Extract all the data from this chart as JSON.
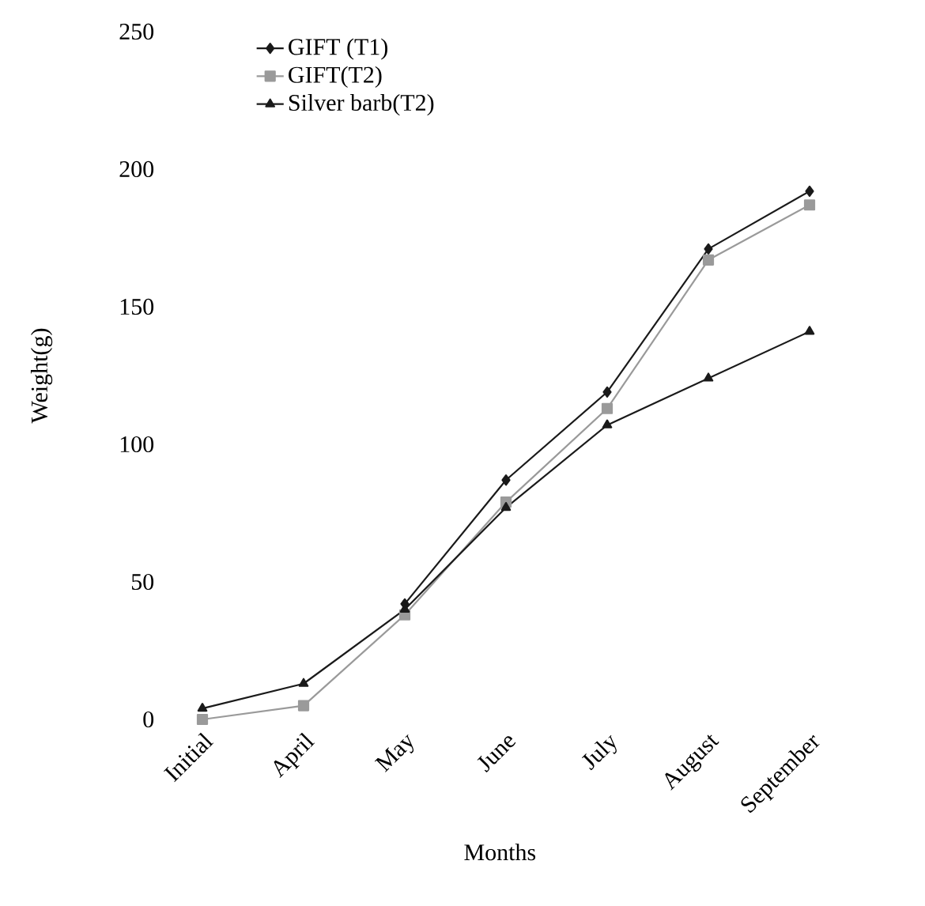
{
  "chart_data": {
    "type": "line",
    "xlabel": "Months",
    "ylabel": "Weight(g)",
    "categories": [
      "Initial",
      "April",
      "May",
      "June",
      "July",
      "August",
      "September"
    ],
    "ylim": [
      0,
      250
    ],
    "yticks": [
      0,
      50,
      100,
      150,
      200,
      250
    ],
    "legend": "top left",
    "grid": false,
    "series": [
      {
        "name": "GIFT (T1)",
        "color": "#1a1a1a",
        "marker": "diamond",
        "values": [
          null,
          null,
          42,
          87,
          119,
          171,
          192
        ]
      },
      {
        "name": "GIFT(T2)",
        "color": "#9a9a9a",
        "marker": "square",
        "values": [
          0,
          5,
          38,
          79,
          113,
          167,
          187
        ]
      },
      {
        "name": "Silver barb(T2)",
        "color": "#1a1a1a",
        "marker": "triangle",
        "values": [
          4,
          13,
          40,
          77,
          107,
          124,
          141
        ]
      }
    ]
  }
}
